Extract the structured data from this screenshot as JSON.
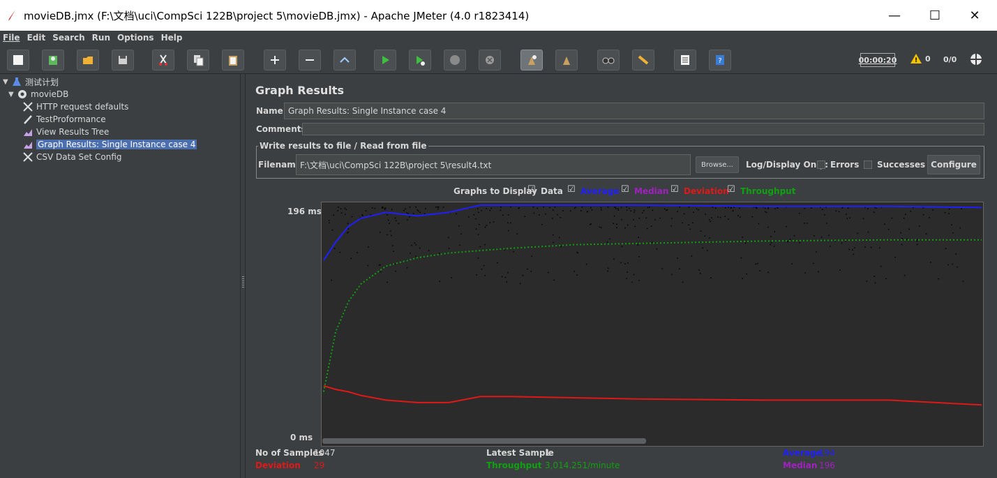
{
  "window": {
    "title": "movieDB.jmx (F:\\文档\\uci\\CompSci 122B\\project 5\\movieDB.jmx) - Apache JMeter (4.0 r1823414)",
    "minimize": "—",
    "maximize": "☐",
    "close": "✕"
  },
  "menu": [
    "File",
    "Edit",
    "Search",
    "Run",
    "Options",
    "Help"
  ],
  "toolbar": {
    "timer": "00:00:20",
    "warnings": "0",
    "ratio": "0/0"
  },
  "tree": {
    "items": [
      {
        "label": "测试计划",
        "level": 0,
        "icon": "flask-icon"
      },
      {
        "label": "movieDB",
        "level": 1,
        "icon": "gear-icon"
      },
      {
        "label": "HTTP request defaults",
        "level": 2,
        "icon": "wrench-icon"
      },
      {
        "label": "TestProformance",
        "level": 2,
        "icon": "pipette-icon"
      },
      {
        "label": "View Results Tree",
        "level": 2,
        "icon": "chart-icon"
      },
      {
        "label": "Graph Results: Single Instance case 4",
        "level": 2,
        "icon": "chart-icon",
        "selected": true
      },
      {
        "label": "CSV Data Set Config",
        "level": 2,
        "icon": "wrench-icon"
      }
    ]
  },
  "panel": {
    "title": "Graph Results",
    "name_label": "Name:",
    "name_value": "Graph Results: Single Instance case 4",
    "comments_label": "Comments:",
    "comments_value": "",
    "file_legend": "Write results to file / Read from file",
    "filename_label": "Filename",
    "filename_value": "F:\\文档\\uci\\CompSci 122B\\project 5\\result4.txt",
    "browse": "Browse...",
    "log_display": "Log/Display Only:",
    "errors": "Errors",
    "successes": "Successes",
    "configure": "Configure",
    "graphs_to_display": "Graphs to Display",
    "toggles": [
      {
        "label": "Data",
        "color": "#d6d6d6"
      },
      {
        "label": "Average",
        "color": "#1f1fff"
      },
      {
        "label": "Median",
        "color": "#a020c0"
      },
      {
        "label": "Deviation",
        "color": "#e01818"
      },
      {
        "label": "Throughput",
        "color": "#10a010"
      }
    ]
  },
  "chart_data": {
    "type": "line",
    "ylabel_top": "196  ms",
    "ylabel_bottom": "0  ms",
    "ylim": [
      0,
      196
    ],
    "series": [
      {
        "name": "Average",
        "color": "#1f1fff",
        "x": [
          1,
          20,
          40,
          60,
          100,
          150,
          200,
          250,
          300,
          400,
          500,
          700,
          900,
          1047
        ],
        "values": [
          150,
          165,
          178,
          185,
          190,
          187,
          190,
          196,
          196,
          196,
          196,
          195,
          195,
          194
        ]
      },
      {
        "name": "Deviation",
        "color": "#e01818",
        "x": [
          1,
          20,
          40,
          60,
          100,
          150,
          200,
          250,
          300,
          400,
          500,
          700,
          900,
          1047
        ],
        "values": [
          45,
          42,
          40,
          37,
          33,
          31,
          31,
          36,
          36,
          35,
          34,
          33,
          33,
          29
        ]
      },
      {
        "name": "Throughput",
        "color": "#10a010",
        "x": [
          1,
          20,
          40,
          60,
          100,
          150,
          200,
          250,
          300,
          400,
          500,
          700,
          900,
          1047
        ],
        "values": [
          40,
          90,
          115,
          130,
          145,
          152,
          156,
          158,
          160,
          163,
          164,
          166,
          167,
          167
        ]
      }
    ]
  },
  "stats": {
    "samples_label": "No of Samples",
    "samples_value": "1047",
    "latest_label": "Latest Sample",
    "latest_value": "1",
    "average_label": "Average",
    "average_value": "194",
    "deviation_label": "Deviation",
    "deviation_value": "29",
    "throughput_label": "Throughput",
    "throughput_value": "3,014.251/minute",
    "median_label": "Median",
    "median_value": "196"
  }
}
